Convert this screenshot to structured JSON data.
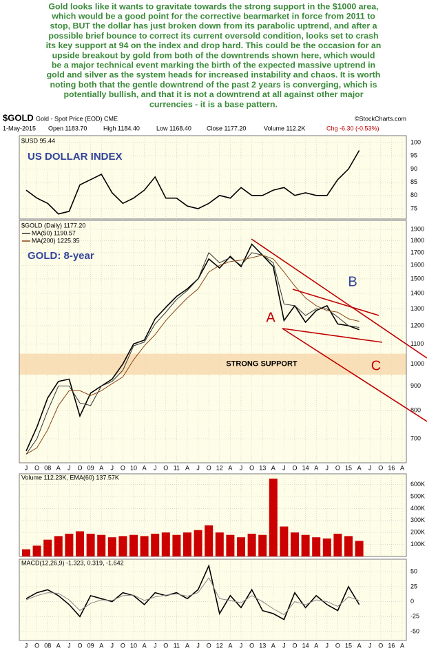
{
  "commentary": [
    "Gold looks like it wants to gravitate towards the strong support in the $1000 area,",
    "which would be a good point for the corrective bearmarket in force from 2011 to",
    "stop, BUT the dollar has just broken down from its parabolic uptrend, and after a",
    "possible brief bounce to correct its current oversold condition, looks set to crash",
    "its key support at 94 on the index and drop hard. This could be the occasion for an",
    "upside breakout by gold from both of the downtrends shown here, which would",
    "be a major technical event marking the birth of the expected massive uptrend in",
    "gold and silver as the system heads for increased instability and chaos. It is worth",
    "noting both that the gentle downtrend of the past 2 years is converging, which is",
    "potentially bullish, and that it is not a downtrend at all against other major",
    "currencies - it is a base pattern."
  ],
  "header": {
    "symbol": "$GOLD",
    "name": "Gold - Spot Price (EOD) CME",
    "source": "©StockCharts.com",
    "date": "1-May-2015",
    "open": "Open 1183.70",
    "high": "High 1184.40",
    "low": "Low 1168.40",
    "close": "Close 1177.20",
    "volume": "Volume 112.2K",
    "change": "Chg -6.30 (-0.53%)"
  },
  "chart_data": [
    {
      "type": "line",
      "annotation": "US DOLLAR INDEX",
      "series": [
        {
          "name": "$USD 95.44",
          "color": "#000000",
          "values": [
            82,
            79,
            77,
            73,
            74,
            84,
            86,
            88,
            81,
            77,
            79,
            82,
            87,
            79,
            79,
            76,
            75,
            77,
            80,
            79,
            83,
            80,
            80,
            82,
            83,
            80,
            81,
            80,
            80,
            86,
            90,
            97,
            null,
            null,
            null,
            null
          ]
        }
      ],
      "ylim": [
        71.1,
        102.6
      ],
      "yticks": [
        75,
        80,
        85,
        90,
        95,
        100
      ],
      "grid": true
    },
    {
      "type": "line",
      "annotation": "GOLD: 8-year",
      "log_scale": true,
      "categories": [
        "J",
        "O",
        "08",
        "A",
        "J",
        "O",
        "09",
        "A",
        "J",
        "O",
        "10",
        "A",
        "J",
        "O",
        "11",
        "A",
        "J",
        "O",
        "12",
        "A",
        "J",
        "O",
        "13",
        "A",
        "J",
        "O",
        "14",
        "A",
        "J",
        "O",
        "15",
        "A",
        "J",
        "O",
        "16",
        "A"
      ],
      "series": [
        {
          "name": "$GOLD (Daily) 1177.20",
          "color": "#000000",
          "values": [
            660,
            740,
            850,
            920,
            930,
            780,
            870,
            900,
            930,
            1000,
            1100,
            1120,
            1240,
            1310,
            1380,
            1430,
            1500,
            1650,
            1580,
            1670,
            1590,
            1770,
            1680,
            1590,
            1230,
            1320,
            1220,
            1290,
            1320,
            1210,
            1200,
            1177,
            null,
            null,
            null,
            null
          ]
        },
        {
          "name": "MA(50) 1190.57",
          "color": "#333333",
          "values": [
            650,
            700,
            800,
            900,
            900,
            830,
            820,
            900,
            920,
            970,
            1090,
            1110,
            1210,
            1280,
            1360,
            1420,
            1500,
            1700,
            1620,
            1660,
            1600,
            1700,
            1680,
            1620,
            1330,
            1320,
            1260,
            1300,
            1300,
            1250,
            1200,
            1190,
            null,
            null,
            null,
            null
          ]
        },
        {
          "name": "MA(200) 1225.35",
          "color": "#8b4513",
          "values": [
            650,
            670,
            730,
            820,
            880,
            880,
            860,
            880,
            910,
            940,
            1020,
            1090,
            1150,
            1230,
            1300,
            1370,
            1430,
            1550,
            1600,
            1630,
            1640,
            1660,
            1680,
            1650,
            1550,
            1450,
            1370,
            1320,
            1290,
            1280,
            1240,
            1225,
            null,
            null,
            null,
            null
          ]
        }
      ],
      "ylim": [
        624,
        1983
      ],
      "yticks": [
        700,
        800,
        900,
        1000,
        1100,
        1200,
        1300,
        1400,
        1500,
        1600,
        1700,
        1800,
        1900
      ],
      "grid": true,
      "support_band": [
        950,
        1050
      ],
      "support_label": "STRONG SUPPORT",
      "trend_labels": [
        "A",
        "B",
        "C"
      ]
    },
    {
      "type": "bar",
      "legend": "Volume 112.23K, EMA(60) 137.57K",
      "color": "#cc0000",
      "values": [
        60000,
        90000,
        140000,
        170000,
        190000,
        210000,
        190000,
        180000,
        160000,
        170000,
        180000,
        170000,
        190000,
        200000,
        180000,
        200000,
        220000,
        260000,
        200000,
        180000,
        160000,
        190000,
        180000,
        650000,
        250000,
        200000,
        180000,
        160000,
        150000,
        190000,
        170000,
        130000,
        null,
        null,
        null,
        null
      ],
      "ylim": [
        0,
        690000
      ],
      "yticks": [
        {
          "value": 100000,
          "label": "100K"
        },
        {
          "value": 200000,
          "label": "200K"
        },
        {
          "value": 300000,
          "label": "300K"
        },
        {
          "value": 400000,
          "label": "400K"
        },
        {
          "value": 500000,
          "label": "500K"
        },
        {
          "value": 600000,
          "label": "600K"
        }
      ],
      "grid": true
    },
    {
      "type": "line",
      "legend": "MACD(12,26,9) -1.323, 0.319, -1.642",
      "categories": [
        "J",
        "O",
        "08",
        "A",
        "J",
        "O",
        "09",
        "A",
        "J",
        "O",
        "10",
        "A",
        "J",
        "O",
        "11",
        "A",
        "J",
        "O",
        "12",
        "A",
        "J",
        "O",
        "13",
        "A",
        "J",
        "O",
        "14",
        "A",
        "J",
        "O",
        "15",
        "A",
        "J",
        "O",
        "16",
        "A"
      ],
      "series": [
        {
          "color": "#000000",
          "values": [
            5,
            15,
            20,
            10,
            -5,
            -25,
            10,
            5,
            0,
            15,
            10,
            -5,
            15,
            10,
            15,
            5,
            20,
            60,
            -20,
            10,
            -10,
            20,
            -15,
            -20,
            -30,
            15,
            -10,
            10,
            -5,
            -15,
            25,
            -5,
            null,
            null,
            null,
            null
          ]
        },
        {
          "color": "#888888",
          "values": [
            3,
            10,
            15,
            14,
            3,
            -15,
            -3,
            3,
            2,
            10,
            11,
            2,
            8,
            11,
            13,
            9,
            15,
            40,
            5,
            2,
            -2,
            10,
            0,
            -12,
            -22,
            0,
            -5,
            3,
            0,
            -8,
            8,
            2,
            null,
            null,
            null,
            null
          ]
        }
      ],
      "ylim": [
        -65,
        71
      ],
      "yticks": [
        -50,
        -25,
        0,
        25,
        50
      ],
      "grid": true
    }
  ]
}
